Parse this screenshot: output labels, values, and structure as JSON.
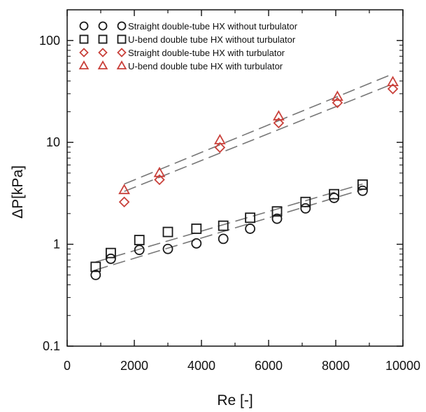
{
  "chart_data": {
    "type": "scatter",
    "title": "",
    "xlabel": "Re [-]",
    "ylabel": "ΔP[kPa]",
    "xlim": [
      0,
      10000
    ],
    "ylim": [
      0.1,
      200
    ],
    "yscale": "log",
    "x_ticks": [
      0,
      2000,
      4000,
      6000,
      8000,
      10000
    ],
    "x_tick_labels": [
      "0",
      "2000",
      "4000",
      "6000",
      "8000",
      "10000"
    ],
    "y_ticks": [
      0.1,
      1,
      10,
      100
    ],
    "y_tick_labels": [
      "0.1",
      "1",
      "10",
      "100"
    ],
    "grid": false,
    "legend_position": "top-left",
    "series": [
      {
        "name": "Straight double-tube HX without turbulator",
        "marker": "circle",
        "color": "#1a1a1a",
        "x": [
          850,
          1300,
          2150,
          3000,
          3850,
          4650,
          5450,
          6250,
          7100,
          7950,
          8800
        ],
        "y": [
          0.5,
          0.72,
          0.88,
          0.9,
          1.02,
          1.13,
          1.42,
          1.78,
          2.25,
          2.85,
          3.35
        ],
        "fit": [
          [
            850,
            0.56
          ],
          [
            8800,
            3.45
          ]
        ]
      },
      {
        "name": "U-bend double tube HX without turbulator",
        "marker": "square",
        "color": "#1a1a1a",
        "x": [
          850,
          1300,
          2150,
          3000,
          3850,
          4650,
          5450,
          6250,
          7100,
          7950,
          8800
        ],
        "y": [
          0.6,
          0.82,
          1.1,
          1.32,
          1.42,
          1.52,
          1.82,
          2.1,
          2.6,
          3.1,
          3.85
        ],
        "fit": [
          [
            850,
            0.67
          ],
          [
            8800,
            3.9
          ]
        ]
      },
      {
        "name": "Straight double-tube HX with turbulator",
        "marker": "diamond",
        "color": "#c9413b",
        "x": [
          1700,
          2750,
          4550,
          6300,
          8050,
          9700
        ],
        "y": [
          2.6,
          4.3,
          8.9,
          15.5,
          24.5,
          33.5
        ],
        "fit": [
          [
            1700,
            3.3
          ],
          [
            9700,
            37.5
          ]
        ]
      },
      {
        "name": "U-bend double tube HX with turbulator",
        "marker": "triangle",
        "color": "#c9413b",
        "x": [
          1700,
          2750,
          4550,
          6300,
          8050,
          9700
        ],
        "y": [
          3.4,
          5.0,
          10.5,
          18.0,
          28.0,
          39.0
        ],
        "fit": [
          [
            1700,
            3.9
          ],
          [
            9700,
            47.0
          ]
        ]
      }
    ]
  }
}
